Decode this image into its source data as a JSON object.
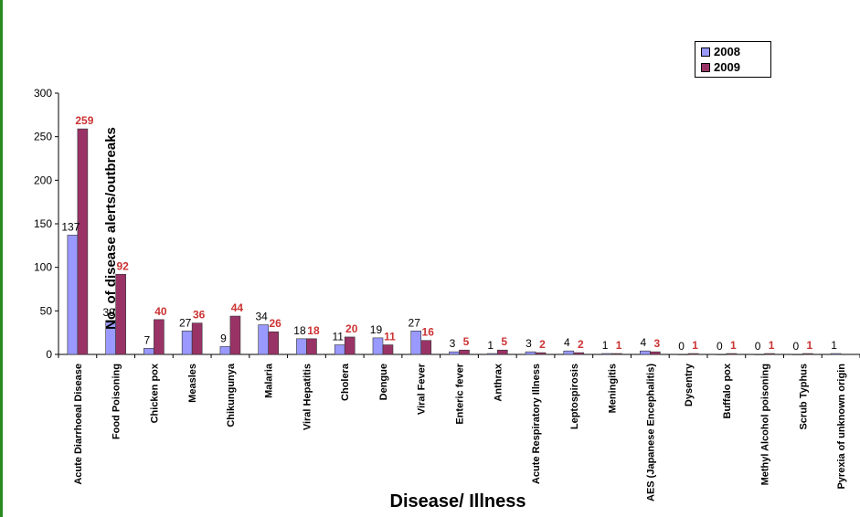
{
  "chart_data": {
    "type": "bar",
    "title": "",
    "xlabel": "Disease/ Illness",
    "ylabel": "No. of disease alerts/outbreaks",
    "ylim": [
      0,
      300
    ],
    "yticks": [
      0,
      50,
      100,
      150,
      200,
      250,
      300
    ],
    "grid": false,
    "legend_position": "top-right",
    "categories": [
      "Acute Diarrhoeal Disease",
      "Food Poisoning",
      "Chicken pox",
      "Measles",
      "Chikungunya",
      "Malaria",
      "Viral Hepatitis",
      "Cholera",
      "Dengue",
      "Viral Fever",
      "Enteric fever",
      "Anthrax",
      "Acute Respiratory Illness",
      "Leptospirosis",
      "Meningitis",
      "AES (Japanese Encephalitis)",
      "Dysentry",
      "Buffalo pox",
      "Methyl Alcohol poisoning",
      "Scrub Typhus",
      "Pyrexia of unknown origin"
    ],
    "series": [
      {
        "name": "2008",
        "color": "#9999ff",
        "label_color": "#000000",
        "values": [
          137,
          39,
          7,
          27,
          9,
          34,
          18,
          11,
          19,
          27,
          3,
          1,
          3,
          4,
          1,
          4,
          0,
          0,
          0,
          0,
          1
        ]
      },
      {
        "name": "2009",
        "color": "#993366",
        "label_color": "#cc3333",
        "values": [
          259,
          92,
          40,
          36,
          44,
          26,
          18,
          20,
          11,
          16,
          5,
          5,
          2,
          2,
          1,
          3,
          1,
          1,
          1,
          1,
          null
        ]
      }
    ]
  }
}
